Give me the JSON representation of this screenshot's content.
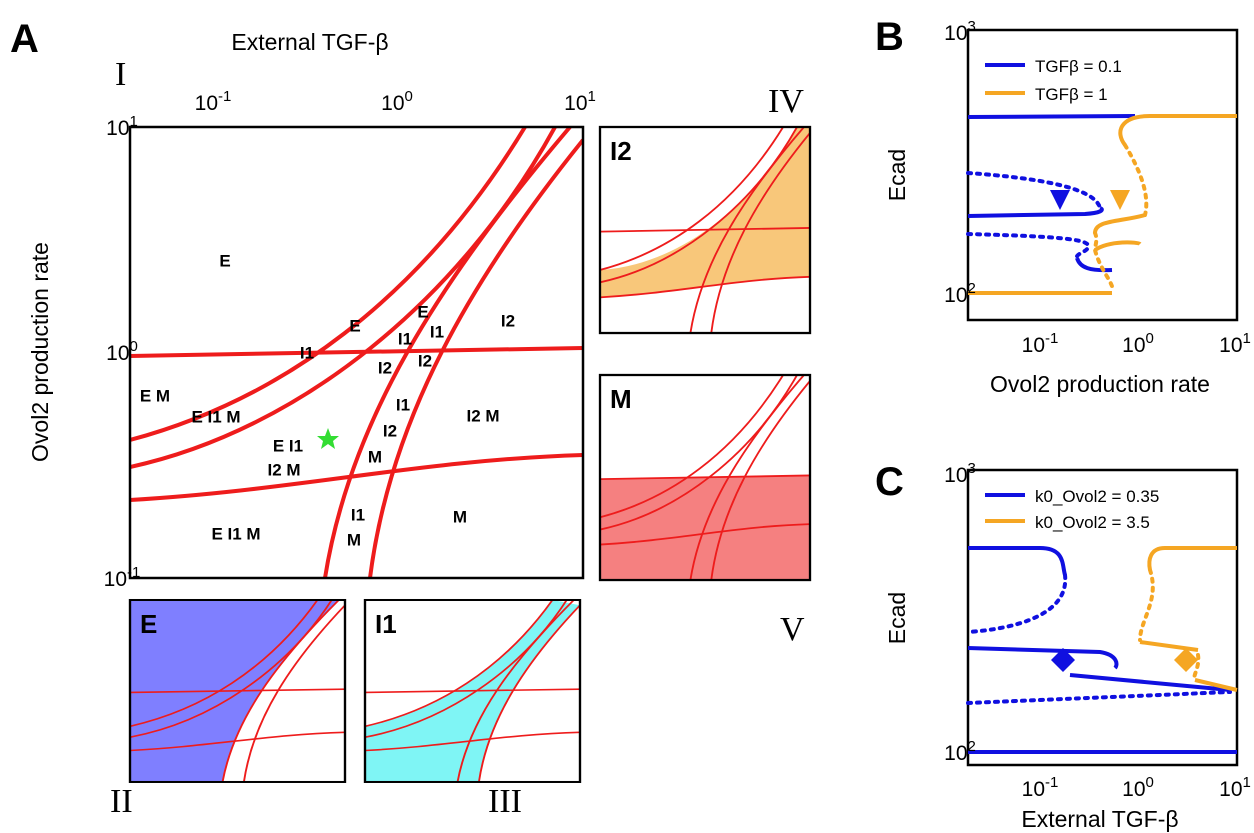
{
  "panel_a": {
    "letter": "A",
    "x_label": "External TGF-β",
    "y_label": "Ovol2 production rate",
    "x_ticks": [
      {
        "base": "10",
        "exp": "-1"
      },
      {
        "base": "10",
        "exp": "0"
      },
      {
        "base": "10",
        "exp": "1"
      }
    ],
    "y_ticks": [
      {
        "base": "10",
        "exp": "1"
      },
      {
        "base": "10",
        "exp": "0"
      },
      {
        "base": "10",
        "exp": "-1"
      }
    ],
    "regions": [
      "E",
      "E",
      "E",
      "I1",
      "I1",
      "I1",
      "I2",
      "I2",
      "I2",
      "E M",
      "E I1 M",
      "I1",
      "I2 M",
      "E I1",
      "I2",
      "M",
      "I2 M",
      "E I1 M",
      "I1",
      "M",
      "M"
    ],
    "roman": [
      "I",
      "II",
      "III",
      "IV",
      "V"
    ],
    "subpanels": [
      "I2",
      "M",
      "E",
      "I1"
    ]
  },
  "panel_b": {
    "letter": "B",
    "x_label": "Ovol2 production rate",
    "y_label": "Ecad",
    "x_ticks": [
      {
        "base": "10",
        "exp": "-1"
      },
      {
        "base": "10",
        "exp": "0"
      },
      {
        "base": "10",
        "exp": "1"
      }
    ],
    "y_ticks": [
      {
        "base": "10",
        "exp": "3"
      },
      {
        "base": "10",
        "exp": "2"
      }
    ],
    "legend": [
      "TGFβ = 0.1",
      "TGFβ = 1"
    ]
  },
  "panel_c": {
    "letter": "C",
    "x_label": "External TGF-β",
    "y_label": "Ecad",
    "x_ticks": [
      {
        "base": "10",
        "exp": "-1"
      },
      {
        "base": "10",
        "exp": "0"
      },
      {
        "base": "10",
        "exp": "1"
      }
    ],
    "y_ticks": [
      {
        "base": "10",
        "exp": "3"
      },
      {
        "base": "10",
        "exp": "2"
      }
    ],
    "legend": [
      "k0_Ovol2 = 0.35",
      "k0_Ovol2 = 3.5"
    ]
  }
}
